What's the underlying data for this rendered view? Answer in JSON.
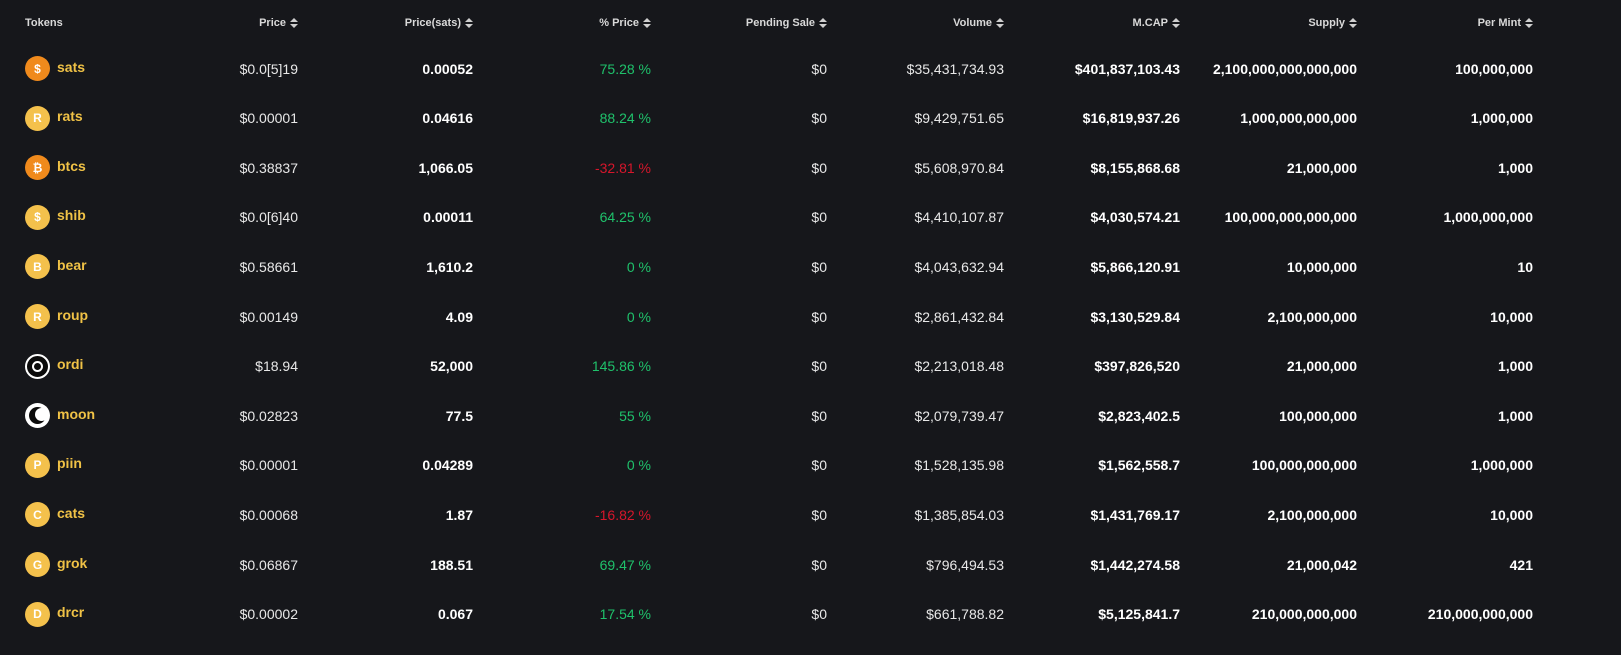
{
  "headers": {
    "tokens": "Tokens",
    "price": "Price",
    "price_sats": "Price(sats)",
    "pct_price": "% Price",
    "pending_sale": "Pending Sale",
    "volume": "Volume",
    "mcap": "M.CAP",
    "supply": "Supply",
    "per_mint": "Per Mint"
  },
  "colors": {
    "background": "#16171b",
    "token_name": "#f0c246",
    "positive": "#1fc16b",
    "negative": "#d6162b"
  },
  "rows": [
    {
      "token": "sats",
      "icon": "dollar-coin-icon",
      "icon_glyph": "$",
      "price": "$0.0[5]19",
      "price_sats": "0.00052",
      "pct": "75.28 %",
      "trend": "pos",
      "pending": "$0",
      "volume": "$35,431,734.93",
      "mcap": "$401,837,103.43",
      "supply": "2,100,000,000,000,000",
      "per_mint": "100,000,000"
    },
    {
      "token": "rats",
      "icon": "r-coin-icon",
      "icon_glyph": "R",
      "price": "$0.00001",
      "price_sats": "0.04616",
      "pct": "88.24 %",
      "trend": "pos",
      "pending": "$0",
      "volume": "$9,429,751.65",
      "mcap": "$16,819,937.26",
      "supply": "1,000,000,000,000",
      "per_mint": "1,000,000"
    },
    {
      "token": "btcs",
      "icon": "bitcoin-coin-icon",
      "icon_glyph": "₿",
      "price": "$0.38837",
      "price_sats": "1,066.05",
      "pct": "-32.81 %",
      "trend": "neg",
      "pending": "$0",
      "volume": "$5,608,970.84",
      "mcap": "$8,155,868.68",
      "supply": "21,000,000",
      "per_mint": "1,000"
    },
    {
      "token": "shib",
      "icon": "dollar-coin-icon",
      "icon_glyph": "$",
      "price": "$0.0[6]40",
      "price_sats": "0.00011",
      "pct": "64.25 %",
      "trend": "pos",
      "pending": "$0",
      "volume": "$4,410,107.87",
      "mcap": "$4,030,574.21",
      "supply": "100,000,000,000,000",
      "per_mint": "1,000,000,000"
    },
    {
      "token": "bear",
      "icon": "b-coin-icon",
      "icon_glyph": "B",
      "price": "$0.58661",
      "price_sats": "1,610.2",
      "pct": "0 %",
      "trend": "pos",
      "pending": "$0",
      "volume": "$4,043,632.94",
      "mcap": "$5,866,120.91",
      "supply": "10,000,000",
      "per_mint": "10"
    },
    {
      "token": "roup",
      "icon": "r-coin-icon",
      "icon_glyph": "R",
      "price": "$0.00149",
      "price_sats": "4.09",
      "pct": "0 %",
      "trend": "pos",
      "pending": "$0",
      "volume": "$2,861,432.84",
      "mcap": "$3,130,529.84",
      "supply": "2,100,000,000",
      "per_mint": "10,000"
    },
    {
      "token": "ordi",
      "icon": "ordi-logo-icon",
      "icon_glyph": "",
      "price": "$18.94",
      "price_sats": "52,000",
      "pct": "145.86 %",
      "trend": "pos",
      "pending": "$0",
      "volume": "$2,213,018.48",
      "mcap": "$397,826,520",
      "supply": "21,000,000",
      "per_mint": "1,000"
    },
    {
      "token": "moon",
      "icon": "moon-logo-icon",
      "icon_glyph": "",
      "price": "$0.02823",
      "price_sats": "77.5",
      "pct": "55 %",
      "trend": "pos",
      "pending": "$0",
      "volume": "$2,079,739.47",
      "mcap": "$2,823,402.5",
      "supply": "100,000,000",
      "per_mint": "1,000"
    },
    {
      "token": "piin",
      "icon": "p-coin-icon",
      "icon_glyph": "P",
      "price": "$0.00001",
      "price_sats": "0.04289",
      "pct": "0 %",
      "trend": "pos",
      "pending": "$0",
      "volume": "$1,528,135.98",
      "mcap": "$1,562,558.7",
      "supply": "100,000,000,000",
      "per_mint": "1,000,000"
    },
    {
      "token": "cats",
      "icon": "c-coin-icon",
      "icon_glyph": "C",
      "price": "$0.00068",
      "price_sats": "1.87",
      "pct": "-16.82 %",
      "trend": "neg",
      "pending": "$0",
      "volume": "$1,385,854.03",
      "mcap": "$1,431,769.17",
      "supply": "2,100,000,000",
      "per_mint": "10,000"
    },
    {
      "token": "grok",
      "icon": "g-coin-icon",
      "icon_glyph": "G",
      "price": "$0.06867",
      "price_sats": "188.51",
      "pct": "69.47 %",
      "trend": "pos",
      "pending": "$0",
      "volume": "$796,494.53",
      "mcap": "$1,442,274.58",
      "supply": "21,000,042",
      "per_mint": "421"
    },
    {
      "token": "drcr",
      "icon": "d-coin-icon",
      "icon_glyph": "D",
      "price": "$0.00002",
      "price_sats": "0.067",
      "pct": "17.54 %",
      "trend": "pos",
      "pending": "$0",
      "volume": "$661,788.82",
      "mcap": "$5,125,841.7",
      "supply": "210,000,000,000",
      "per_mint": "210,000,000,000"
    }
  ]
}
